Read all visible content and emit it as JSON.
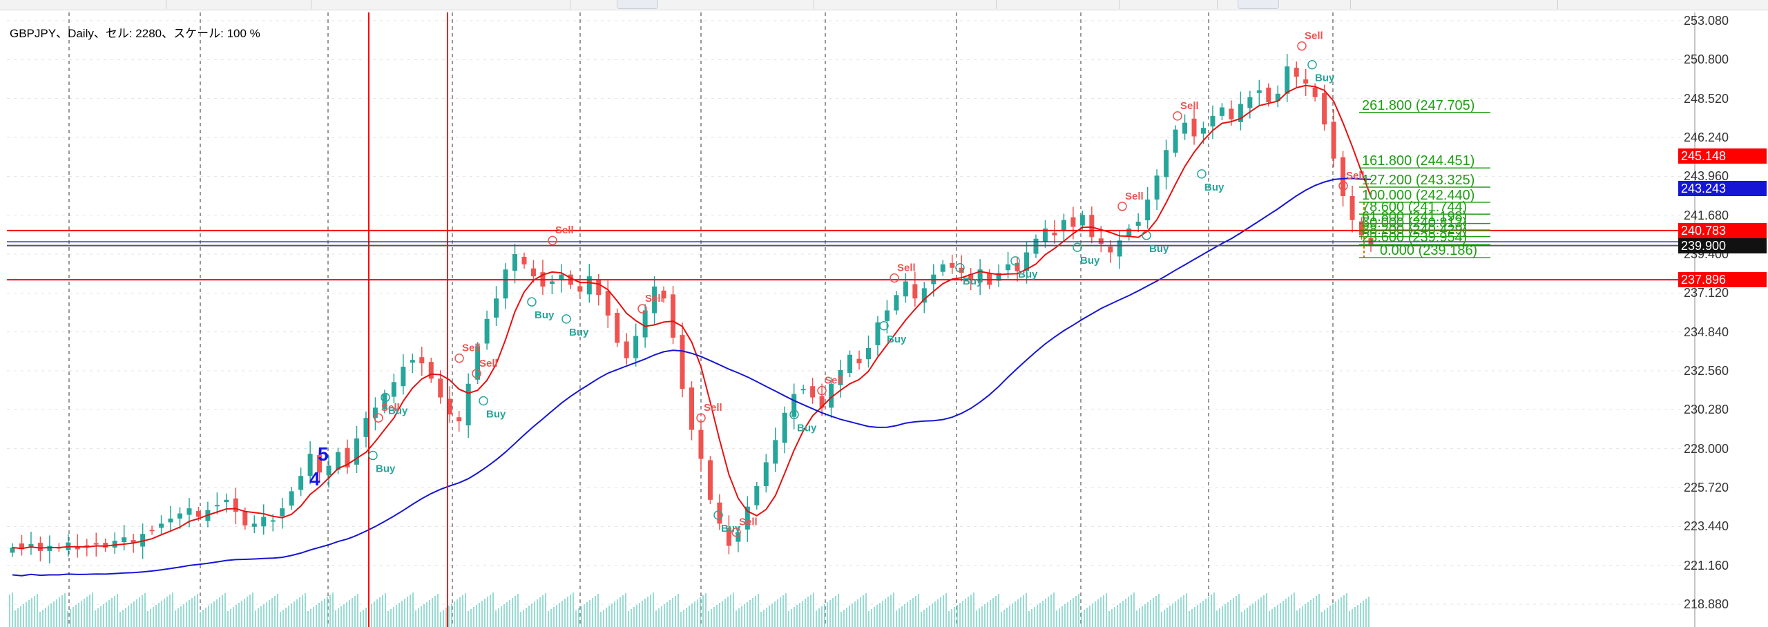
{
  "chart_info": "GBPJPY、Daily、セル: 2280、スケール: 100 %",
  "price_axis": {
    "ticks": [
      "253.080",
      "250.800",
      "248.520",
      "246.240",
      "243.960",
      "241.680",
      "239.400",
      "237.120",
      "234.840",
      "232.560",
      "230.280",
      "228.000",
      "225.720",
      "223.440",
      "221.160",
      "218.880"
    ]
  },
  "price_tags": [
    {
      "label": "245.148",
      "color": "#ff0000"
    },
    {
      "label": "243.243",
      "color": "#1515d6"
    },
    {
      "label": "240.783",
      "color": "#ff0000"
    },
    {
      "label": "239.900",
      "color": "#111111"
    },
    {
      "label": "237.896",
      "color": "#ff0000"
    }
  ],
  "fibonacci": [
    {
      "label": "261.800 (247.705)"
    },
    {
      "label": "161.800 (244.451)"
    },
    {
      "label": "127.200 (243.325)"
    },
    {
      "label": "100.000 (242.440)"
    },
    {
      "label": "78.600 (241.744)"
    },
    {
      "label": "61.800 (241.198)"
    },
    {
      "label": "50.000 (240.813)"
    },
    {
      "label": "38.200 (240.429)"
    },
    {
      "label": "23.600 (239.954)"
    },
    {
      "label": "0.000 (239.186)"
    }
  ],
  "wave_labels": [
    {
      "text": "4"
    },
    {
      "text": "5"
    }
  ],
  "signals": {
    "buy_text": "Buy",
    "sell_text": "Sell"
  },
  "colors": {
    "bull": "#26a69a",
    "bear": "#ef5350",
    "ma_fast": "#e81010",
    "ma_slow": "#1515d6",
    "fib": "#1f9e14",
    "hline": "#ff0000",
    "volume": "#7fd3c8"
  },
  "chart_data": {
    "type": "candlestick",
    "symbol": "GBPJPY",
    "timeframe": "Daily",
    "ylim": [
      218.88,
      253.08
    ],
    "close": [
      222.2,
      222.1,
      222.4,
      222.0,
      222.3,
      222.2,
      222.5,
      222.1,
      222.3,
      222.4,
      222.2,
      222.6,
      222.8,
      222.5,
      223.0,
      223.2,
      223.6,
      223.9,
      224.2,
      224.5,
      224.0,
      224.4,
      224.7,
      225.0,
      224.3,
      223.5,
      223.6,
      224.0,
      223.8,
      224.5,
      225.5,
      226.4,
      227.7,
      226.6,
      227.0,
      227.8,
      226.9,
      228.6,
      229.8,
      230.4,
      231.2,
      231.9,
      232.8,
      233.2,
      233.0,
      232.1,
      231.0,
      230.0,
      229.6,
      231.8,
      234.0,
      235.6,
      236.8,
      238.5,
      239.4,
      238.8,
      238.1,
      237.5,
      237.8,
      238.2,
      237.6,
      237.2,
      238.1,
      237.0,
      235.8,
      234.2,
      233.3,
      234.6,
      236.1,
      237.5,
      236.8,
      234.5,
      231.5,
      229.1,
      227.4,
      225.0,
      223.6,
      222.3,
      223.1,
      224.6,
      225.8,
      227.2,
      228.5,
      230.1,
      231.2,
      231.5,
      231.0,
      230.4,
      231.8,
      232.6,
      233.5,
      233.0,
      233.9,
      235.4,
      236.1,
      237.0,
      237.8,
      236.8,
      237.4,
      238.2,
      238.8,
      238.6,
      238.3,
      237.9,
      238.5,
      237.6,
      238.3,
      238.8,
      238.4,
      239.5,
      240.3,
      240.9,
      240.5,
      241.4,
      241.0,
      241.7,
      240.4,
      240.0,
      239.5,
      240.2,
      240.9,
      241.3,
      242.6,
      244.0,
      245.5,
      246.7,
      247.1,
      246.3,
      246.8,
      247.5,
      248.0,
      247.3,
      248.2,
      248.6,
      249.0,
      248.3,
      248.8,
      250.4,
      249.8,
      249.4,
      248.6,
      247.0,
      245.0,
      242.8,
      241.4,
      240.5,
      239.9
    ]
  }
}
